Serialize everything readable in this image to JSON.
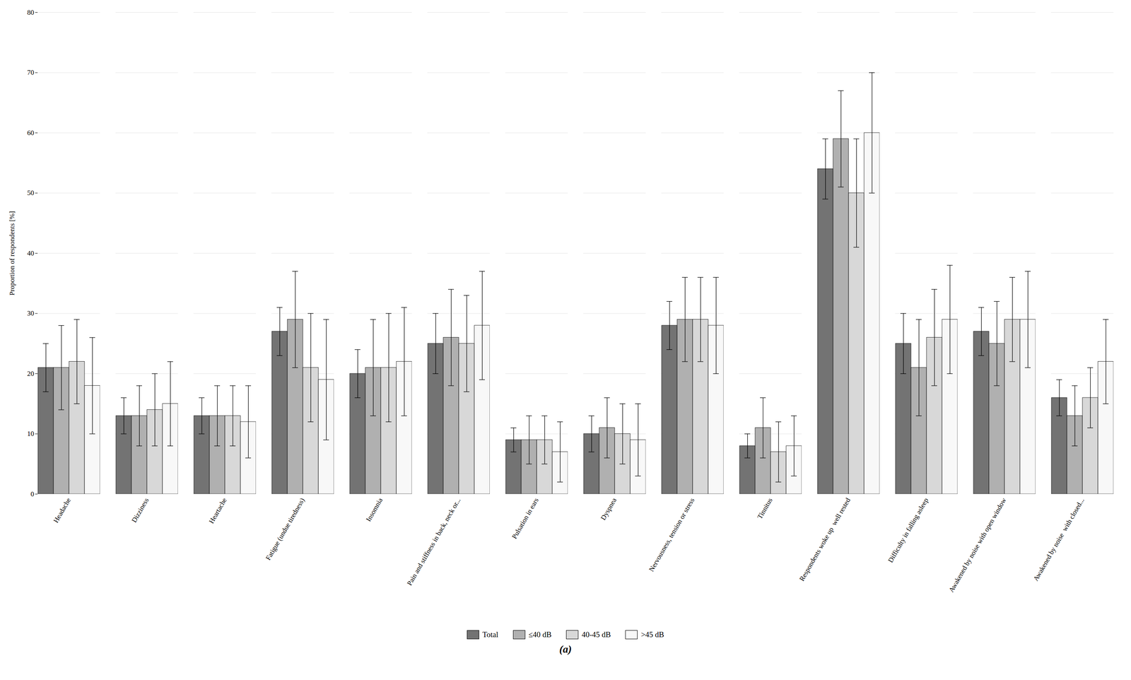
{
  "chart_data": {
    "type": "bar",
    "ylabel": "Proportion of respondents [%]",
    "xlabel": "(a)",
    "categories": [
      "Headache",
      "Dizziness",
      "Heartache",
      "Fatigue (undue tiredness)",
      "Insomnia",
      "Pain and stiffness in back, neck or...",
      "Pulsation in ears",
      "Dyspnea",
      "Nervousness, tension or stress",
      "Tinnitus",
      "Respondents woke up  well rested",
      "Difficulty in falling asleep",
      "Awakened by noise with open window",
      "Awakened by noise  with closed..."
    ],
    "series": [
      {
        "name": "Total",
        "color": "#737373",
        "values": [
          21,
          13,
          13,
          27,
          20,
          25,
          9,
          10,
          28,
          8,
          54,
          25,
          27,
          16
        ],
        "errors": [
          4,
          3,
          3,
          4,
          4,
          5,
          2,
          3,
          4,
          2,
          5,
          5,
          4,
          3
        ]
      },
      {
        "name": "≤40 dB",
        "color": "#b0b0b0",
        "values": [
          21,
          13,
          13,
          29,
          21,
          26,
          9,
          11,
          29,
          11,
          59,
          21,
          25,
          13
        ],
        "errors": [
          7,
          5,
          5,
          8,
          8,
          8,
          4,
          5,
          7,
          5,
          8,
          8,
          7,
          5
        ]
      },
      {
        "name": "40-45 dB",
        "color": "#d8d8d8",
        "values": [
          22,
          14,
          13,
          21,
          21,
          25,
          9,
          10,
          29,
          7,
          50,
          26,
          29,
          16
        ],
        "errors": [
          7,
          6,
          5,
          9,
          9,
          8,
          4,
          5,
          7,
          5,
          9,
          8,
          7,
          5
        ]
      },
      {
        "name": ">45 dB",
        "color": "#f8f8f8",
        "values": [
          18,
          15,
          12,
          19,
          22,
          28,
          7,
          9,
          28,
          8,
          60,
          29,
          29,
          22
        ],
        "errors": [
          8,
          7,
          6,
          10,
          9,
          9,
          5,
          6,
          8,
          5,
          10,
          9,
          8,
          7
        ]
      }
    ],
    "ylim": [
      0,
      80
    ],
    "yticks": [
      0,
      10,
      20,
      30,
      40,
      50,
      60,
      70,
      80
    ],
    "grid": true,
    "legend": "bottom"
  }
}
